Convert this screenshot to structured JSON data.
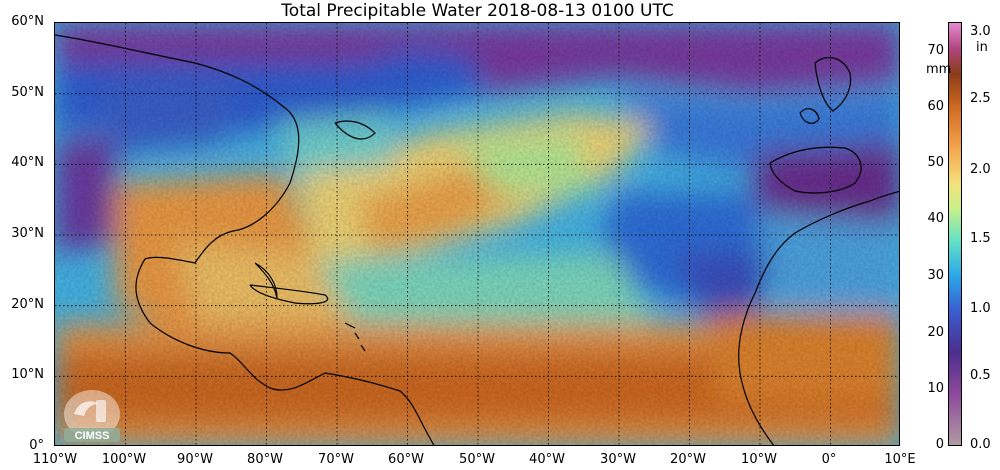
{
  "title": "Total Precipitable Water  2018-08-13 0100 UTC",
  "lat_labels": [
    "60°N",
    "50°N",
    "40°N",
    "30°N",
    "20°N",
    "10°N",
    "0°"
  ],
  "lon_labels": [
    "110°W",
    "100°W",
    "90°W",
    "80°W",
    "70°W",
    "60°W",
    "50°W",
    "40°W",
    "30°W",
    "20°W",
    "10°W",
    "0°",
    "10°E"
  ],
  "colorbar": {
    "unit_mm": "mm",
    "unit_in": "in",
    "mm_ticks": [
      "70",
      "60",
      "50",
      "40",
      "30",
      "20",
      "10",
      "0"
    ],
    "in_ticks": [
      "3.0",
      "2.5",
      "2.0",
      "1.5",
      "1.0",
      "0.5",
      "0.0"
    ]
  },
  "logo": {
    "text": "CIMSS"
  }
}
